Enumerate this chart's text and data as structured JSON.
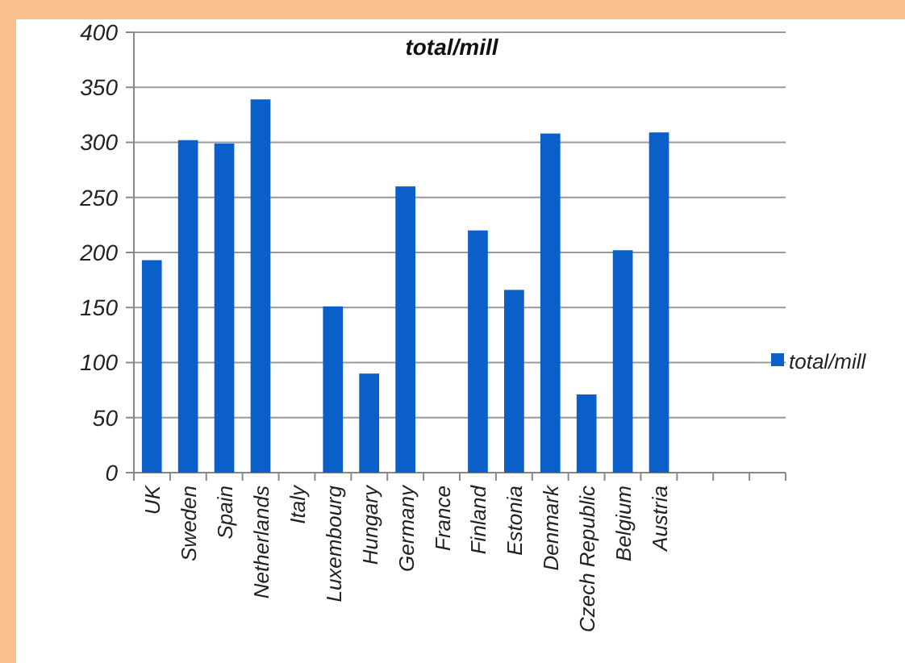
{
  "chart_data": {
    "type": "bar",
    "title": "total/mill",
    "categories": [
      "UK",
      "Sweden",
      "Spain",
      "Netherlands",
      "Italy",
      "Luxembourg",
      "Hungary",
      "Germany",
      "France",
      "Finland",
      "Estonia",
      "Denmark",
      "Czech Republic",
      "Belgium",
      "Austria",
      null,
      null,
      null
    ],
    "series": [
      {
        "name": "total/mill",
        "color": "#0a5fc8",
        "values": [
          193,
          302,
          299,
          339,
          null,
          151,
          90,
          260,
          null,
          220,
          166,
          308,
          71,
          202,
          309,
          null,
          null,
          null
        ]
      }
    ],
    "ylim": [
      0,
      400
    ],
    "yticks": [
      0,
      50,
      100,
      150,
      200,
      250,
      300,
      350,
      400
    ],
    "grid": "y",
    "legend": "right"
  }
}
